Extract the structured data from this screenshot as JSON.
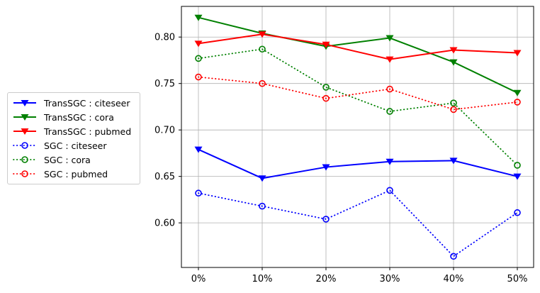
{
  "chart_data": {
    "type": "line",
    "title": "",
    "xlabel": "",
    "ylabel": "",
    "categories": [
      "0%",
      "10%",
      "20%",
      "30%",
      "40%",
      "50%"
    ],
    "yticks": [
      0.6,
      0.65,
      0.7,
      0.75,
      0.8
    ],
    "ylim": [
      0.552,
      0.833
    ],
    "grid": true,
    "grid_color": "#b0b0b0",
    "axis_color": "#000000",
    "background": "#ffffff",
    "legend_position": "outside-left",
    "series": [
      {
        "name": "TransSGC : citeseer",
        "color": "#0000ff",
        "line_style": "solid",
        "marker": "triangle-down-filled",
        "values": [
          0.679,
          0.648,
          0.66,
          0.666,
          0.667,
          0.65
        ]
      },
      {
        "name": "TransSGC : cora",
        "color": "#008000",
        "line_style": "solid",
        "marker": "triangle-down-filled",
        "values": [
          0.821,
          0.804,
          0.79,
          0.799,
          0.773,
          0.74
        ]
      },
      {
        "name": "TransSGC : pubmed",
        "color": "#ff0000",
        "line_style": "solid",
        "marker": "triangle-down-filled",
        "values": [
          0.793,
          0.803,
          0.792,
          0.776,
          0.786,
          0.783
        ]
      },
      {
        "name": "SGC : citeseer",
        "color": "#0000ff",
        "line_style": "dotted",
        "marker": "circle-open",
        "values": [
          0.632,
          0.618,
          0.604,
          0.635,
          0.564,
          0.611
        ]
      },
      {
        "name": "SGC : cora",
        "color": "#008000",
        "line_style": "dotted",
        "marker": "circle-open",
        "values": [
          0.777,
          0.787,
          0.746,
          0.72,
          0.729,
          0.662
        ]
      },
      {
        "name": "SGC : pubmed",
        "color": "#ff0000",
        "line_style": "dotted",
        "marker": "circle-open",
        "values": [
          0.757,
          0.75,
          0.734,
          0.744,
          0.722,
          0.73
        ]
      }
    ]
  }
}
